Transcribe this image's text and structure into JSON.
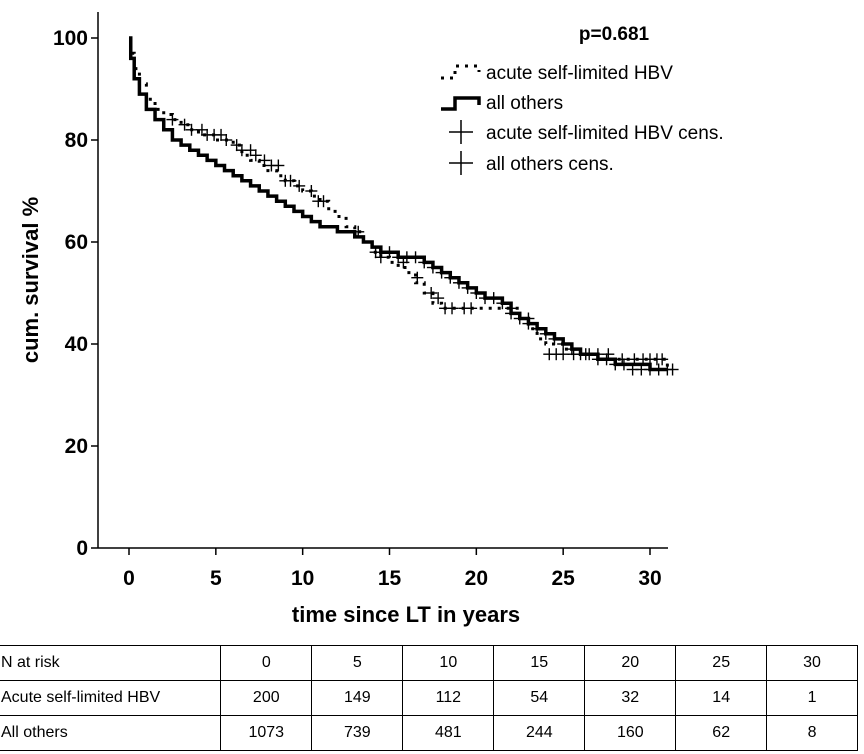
{
  "chart_data": {
    "type": "line",
    "title": "",
    "annotation": "p=0.681",
    "xlabel": "time since LT in years",
    "ylabel": "cum. survival %",
    "xlim": [
      0,
      32
    ],
    "ylim": [
      0,
      100
    ],
    "xticks": [
      0,
      5,
      10,
      15,
      20,
      25,
      30
    ],
    "yticks": [
      0,
      20,
      40,
      60,
      80,
      100
    ],
    "grid": false,
    "legend_position": "top-right",
    "legend": [
      {
        "label": "acute self-limited HBV",
        "style": "dotted-step"
      },
      {
        "label": "all others",
        "style": "solid-step"
      },
      {
        "label": "acute self-limited HBV cens.",
        "style": "plus"
      },
      {
        "label": "all others cens.",
        "style": "plus"
      }
    ],
    "series": [
      {
        "name": "acute self-limited HBV",
        "line_style": "dotted",
        "x": [
          0,
          0.1,
          0.3,
          0.6,
          1.0,
          1.5,
          2.0,
          2.5,
          3.0,
          3.5,
          4.0,
          4.5,
          5.0,
          5.5,
          6.0,
          6.5,
          7.0,
          7.5,
          8.0,
          8.5,
          9.0,
          9.5,
          10.0,
          10.5,
          11.0,
          11.5,
          12.0,
          12.5,
          13.0,
          13.5,
          14.0,
          14.5,
          15.0,
          15.5,
          16.0,
          16.5,
          17.0,
          17.5,
          18.0,
          18.5,
          19.0,
          19.5,
          20.0,
          20.5,
          21.0,
          21.5,
          22.0,
          22.5,
          23.0,
          23.5,
          24.0,
          25.0,
          26.0,
          27.0,
          28.0,
          29.0,
          30.0,
          31.0
        ],
        "y": [
          100,
          97,
          94,
          91,
          88,
          86,
          85,
          84,
          83,
          82,
          81,
          81,
          80,
          80,
          79,
          77,
          76,
          75,
          74,
          73,
          72,
          71,
          70,
          69,
          68,
          66,
          65,
          63,
          62,
          60,
          58,
          57,
          56,
          55,
          54,
          52,
          50,
          48,
          47,
          47,
          47,
          47,
          47,
          47,
          47,
          47,
          47,
          45,
          43,
          41,
          40,
          39,
          38,
          37,
          37,
          37,
          37,
          35
        ]
      },
      {
        "name": "all others",
        "line_style": "solid",
        "x": [
          0,
          0.1,
          0.3,
          0.6,
          1.0,
          1.5,
          2.0,
          2.5,
          3.0,
          3.5,
          4.0,
          4.5,
          5.0,
          5.5,
          6.0,
          6.5,
          7.0,
          7.5,
          8.0,
          8.5,
          9.0,
          9.5,
          10.0,
          10.5,
          11.0,
          11.5,
          12.0,
          12.5,
          13.0,
          13.5,
          14.0,
          14.5,
          15.0,
          15.5,
          16.0,
          16.5,
          17.0,
          17.5,
          18.0,
          18.5,
          19.0,
          19.5,
          20.0,
          20.5,
          21.0,
          21.5,
          22.0,
          22.5,
          23.0,
          23.5,
          24.0,
          24.5,
          25.0,
          25.5,
          26.0,
          26.5,
          27.0,
          28.0,
          29.0,
          30.0,
          31.0
        ],
        "y": [
          100,
          96,
          92,
          89,
          86,
          84,
          82,
          80,
          79,
          78,
          77,
          76,
          75,
          74,
          73,
          72,
          71,
          70,
          69,
          68,
          67,
          66,
          65,
          64,
          63,
          63,
          62,
          62,
          61,
          60,
          59,
          58,
          58,
          57,
          57,
          57,
          56,
          55,
          54,
          53,
          52,
          51,
          50,
          49,
          49,
          48,
          46,
          45,
          44,
          43,
          42,
          41,
          40,
          39,
          38,
          38,
          37,
          36,
          36,
          35,
          35
        ]
      }
    ],
    "censored_marks": [
      {
        "name": "acute self-limited HBV cens.",
        "x": [
          2.5,
          3.2,
          3.6,
          4.2,
          4.5,
          4.9,
          5.3,
          5.6,
          6.2,
          6.5,
          7.0,
          7.3,
          7.8,
          8.2,
          8.6,
          9.0,
          9.3,
          9.8,
          10.5,
          10.9,
          11.2,
          13.2,
          14.2,
          14.5,
          15.8,
          16.6,
          17.4,
          17.8,
          18.2,
          18.6,
          19.3,
          19.7,
          22.0,
          23.0,
          24.2,
          24.6,
          25.0,
          25.6,
          26.3,
          27.0,
          27.6,
          28.4,
          29.1,
          29.6,
          30.0,
          30.4,
          30.7
        ],
        "y": [
          84,
          83,
          82,
          82,
          81,
          81,
          81,
          80,
          79,
          78,
          78,
          77,
          76,
          75,
          75,
          72,
          72,
          71,
          70,
          68,
          68,
          62,
          58,
          57,
          56,
          53,
          50,
          49,
          47,
          47,
          47,
          47,
          47,
          45,
          38,
          38,
          38,
          38,
          38,
          38,
          38,
          37,
          37,
          37,
          37,
          37,
          37
        ]
      },
      {
        "name": "all others cens.",
        "x": [
          14.5,
          15.0,
          15.5,
          16.0,
          16.5,
          17.0,
          17.5,
          18.0,
          18.5,
          19.0,
          19.5,
          20.0,
          20.5,
          21.0,
          21.5,
          22.0,
          22.5,
          23.0,
          23.5,
          24.0,
          24.5,
          25.0,
          25.5,
          26.0,
          26.5,
          27.0,
          27.5,
          28.0,
          28.5,
          29.0,
          29.5,
          30.0,
          30.5,
          31.0,
          31.3
        ],
        "y": [
          58,
          58,
          57,
          57,
          57,
          56,
          55,
          54,
          53,
          52,
          51,
          50,
          49,
          49,
          48,
          46,
          45,
          44,
          43,
          42,
          41,
          40,
          39,
          38,
          38,
          37,
          37,
          36,
          36,
          35,
          35,
          35,
          35,
          35,
          35
        ]
      }
    ]
  },
  "risk_table": {
    "header": {
      "label": "N at risk",
      "values": [
        "0",
        "5",
        "10",
        "15",
        "20",
        "25",
        "30"
      ]
    },
    "rows": [
      {
        "label": "Acute self-limited HBV",
        "values": [
          "200",
          "149",
          "112",
          "54",
          "32",
          "14",
          "1"
        ]
      },
      {
        "label": "All others",
        "values": [
          "1073",
          "739",
          "481",
          "244",
          "160",
          "62",
          "8"
        ]
      }
    ]
  }
}
